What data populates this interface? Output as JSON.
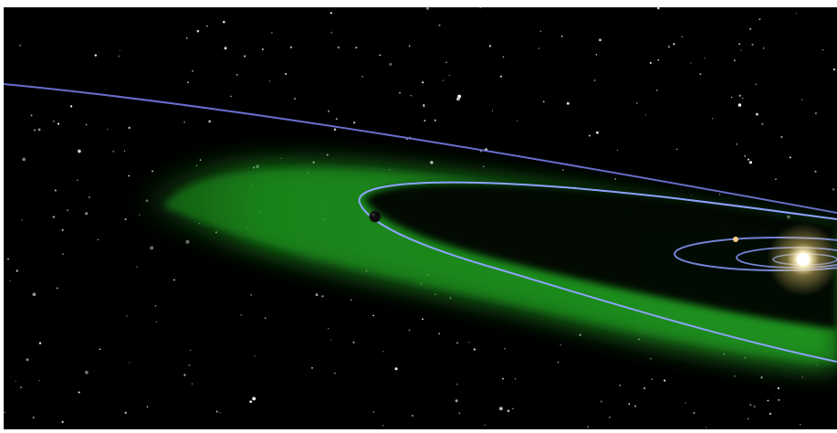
{
  "scene": {
    "description_hidden": "",
    "colors": {
      "space": "#000000",
      "habitable_zone": "#1f8a1f",
      "habitable_zone_glow": "#2fb12f",
      "orbit_line": "#8ea4ff",
      "outer_orbit": "#6f73d8",
      "star": "#fff6cf",
      "planet": "#0b0b0b"
    },
    "icons": {
      "star": "star-icon",
      "planet": "planet-icon"
    }
  }
}
